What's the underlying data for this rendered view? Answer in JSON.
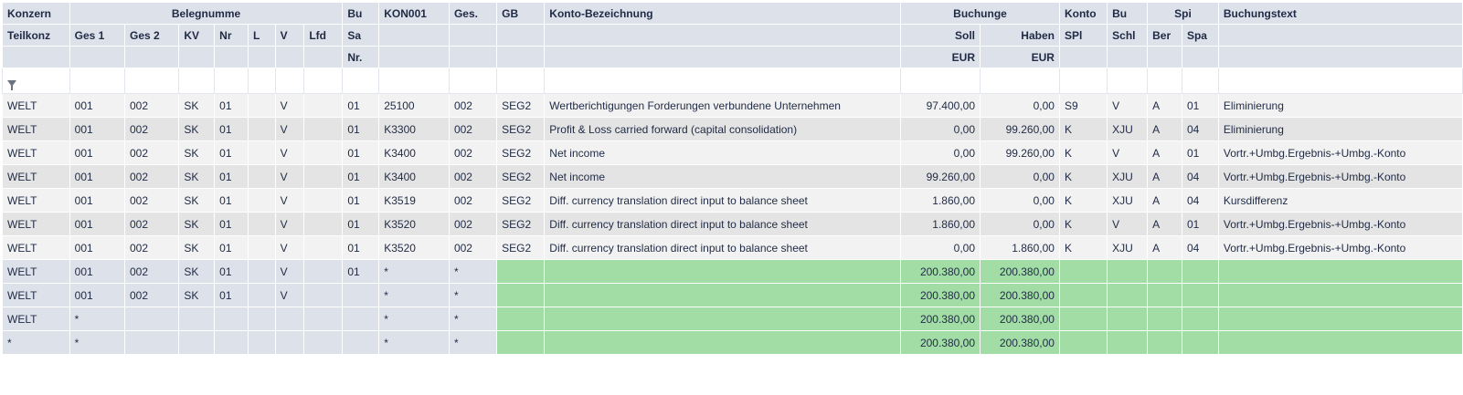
{
  "header": {
    "konzern": "Konzern",
    "teilkonz": "Teilkonz",
    "belegnummer": "Belegnumme",
    "ges1": "Ges 1",
    "ges2": "Ges 2",
    "kv": "KV",
    "nr": "Nr",
    "l": "L",
    "v": "V",
    "lfd": "Lfd",
    "bu": "Bu",
    "sa": "Sa",
    "nr2": "Nr.",
    "kon001": "KON001",
    "ges": "Ges.",
    "gb": "GB",
    "konto_bez": "Konto-Bezeichnung",
    "buchungen": "Buchunge",
    "soll": "Soll",
    "haben": "Haben",
    "eur1": "EUR",
    "eur2": "EUR",
    "konto": "Konto",
    "spl": "SPl",
    "bu2": "Bu",
    "schl": "Schl",
    "spi": "Spi",
    "ber": "Ber",
    "spa": "Spa",
    "buchungstext": "Buchungstext"
  },
  "rows": [
    {
      "konz": "WELT",
      "ges1": "001",
      "ges2": "002",
      "kv": "SK",
      "nr": "01",
      "l": "",
      "v": "V",
      "lfd": "",
      "busa": "01",
      "kon": "25100",
      "ges": "002",
      "gb": "SEG2",
      "bez": "Wertberichtigungen Forderungen verbundene Unternehmen",
      "soll": "97.400,00",
      "haben": "0,00",
      "konto": "S9",
      "bu": "V",
      "ber": "A",
      "spa": "01",
      "text": "Eliminierung"
    },
    {
      "konz": "WELT",
      "ges1": "001",
      "ges2": "002",
      "kv": "SK",
      "nr": "01",
      "l": "",
      "v": "V",
      "lfd": "",
      "busa": "01",
      "kon": "K3300",
      "ges": "002",
      "gb": "SEG2",
      "bez": "Profit & Loss carried forward (capital consolidation)",
      "soll": "0,00",
      "haben": "99.260,00",
      "konto": "K",
      "bu": "XJU",
      "ber": "A",
      "spa": "04",
      "text": "Eliminierung"
    },
    {
      "konz": "WELT",
      "ges1": "001",
      "ges2": "002",
      "kv": "SK",
      "nr": "01",
      "l": "",
      "v": "V",
      "lfd": "",
      "busa": "01",
      "kon": "K3400",
      "ges": "002",
      "gb": "SEG2",
      "bez": "Net income",
      "soll": "0,00",
      "haben": "99.260,00",
      "konto": "K",
      "bu": "V",
      "ber": "A",
      "spa": "01",
      "text": "Vortr.+Umbg.Ergebnis-+Umbg.-Konto"
    },
    {
      "konz": "WELT",
      "ges1": "001",
      "ges2": "002",
      "kv": "SK",
      "nr": "01",
      "l": "",
      "v": "V",
      "lfd": "",
      "busa": "01",
      "kon": "K3400",
      "ges": "002",
      "gb": "SEG2",
      "bez": "Net income",
      "soll": "99.260,00",
      "haben": "0,00",
      "konto": "K",
      "bu": "XJU",
      "ber": "A",
      "spa": "04",
      "text": "Vortr.+Umbg.Ergebnis-+Umbg.-Konto"
    },
    {
      "konz": "WELT",
      "ges1": "001",
      "ges2": "002",
      "kv": "SK",
      "nr": "01",
      "l": "",
      "v": "V",
      "lfd": "",
      "busa": "01",
      "kon": "K3519",
      "ges": "002",
      "gb": "SEG2",
      "bez": "Diff. currency translation direct input to balance sheet",
      "soll": "1.860,00",
      "haben": "0,00",
      "konto": "K",
      "bu": "XJU",
      "ber": "A",
      "spa": "04",
      "text": "Kursdifferenz"
    },
    {
      "konz": "WELT",
      "ges1": "001",
      "ges2": "002",
      "kv": "SK",
      "nr": "01",
      "l": "",
      "v": "V",
      "lfd": "",
      "busa": "01",
      "kon": "K3520",
      "ges": "002",
      "gb": "SEG2",
      "bez": "Diff. currency translation direct input to balance sheet",
      "soll": "1.860,00",
      "haben": "0,00",
      "konto": "K",
      "bu": "V",
      "ber": "A",
      "spa": "01",
      "text": "Vortr.+Umbg.Ergebnis-+Umbg.-Konto"
    },
    {
      "konz": "WELT",
      "ges1": "001",
      "ges2": "002",
      "kv": "SK",
      "nr": "01",
      "l": "",
      "v": "V",
      "lfd": "",
      "busa": "01",
      "kon": "K3520",
      "ges": "002",
      "gb": "SEG2",
      "bez": "Diff. currency translation direct input to balance sheet",
      "soll": "0,00",
      "haben": "1.860,00",
      "konto": "K",
      "bu": "XJU",
      "ber": "A",
      "spa": "04",
      "text": "Vortr.+Umbg.Ergebnis-+Umbg.-Konto"
    }
  ],
  "sums": [
    {
      "konz": "WELT",
      "ges1": "001",
      "ges2": "002",
      "kv": "SK",
      "nr": "01",
      "v": "V",
      "busa": "01",
      "kon": "*",
      "ges": "*",
      "soll": "200.380,00",
      "haben": "200.380,00"
    },
    {
      "konz": "WELT",
      "ges1": "001",
      "ges2": "002",
      "kv": "SK",
      "nr": "01",
      "v": "V",
      "busa": "",
      "kon": "*",
      "ges": "*",
      "soll": "200.380,00",
      "haben": "200.380,00"
    },
    {
      "konz": "WELT",
      "ges1": "*",
      "ges2": "",
      "kv": "",
      "nr": "",
      "v": "",
      "busa": "",
      "kon": "*",
      "ges": "*",
      "soll": "200.380,00",
      "haben": "200.380,00"
    },
    {
      "konz": "*",
      "ges1": "*",
      "ges2": "",
      "kv": "",
      "nr": "",
      "v": "",
      "busa": "",
      "kon": "*",
      "ges": "*",
      "soll": "200.380,00",
      "haben": "200.380,00"
    }
  ]
}
